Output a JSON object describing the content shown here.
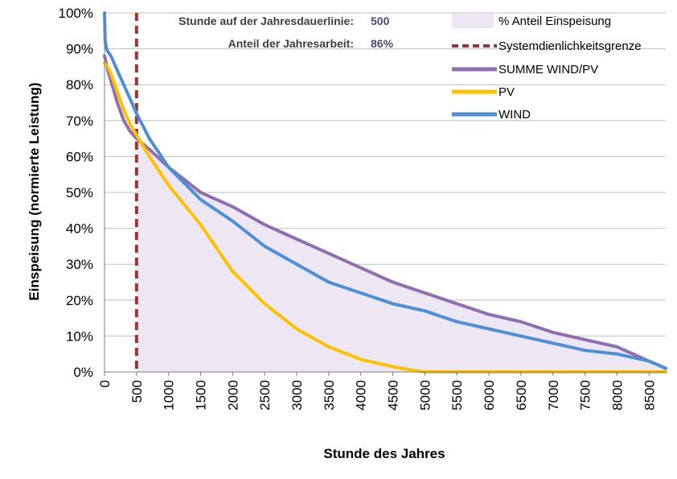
{
  "chart_data": {
    "type": "area",
    "title": "",
    "xlabel": "Stunde des Jahres",
    "ylabel": "Einspeisung (normierte Leistung)",
    "xlim": [
      0,
      8760
    ],
    "ylim": [
      0,
      100
    ],
    "x_ticks": [
      "0",
      "500",
      "1000",
      "1500",
      "2000",
      "2500",
      "3000",
      "3500",
      "4000",
      "4500",
      "5000",
      "5500",
      "6000",
      "6500",
      "7000",
      "7500",
      "8000",
      "8500"
    ],
    "y_ticks": [
      "0%",
      "10%",
      "20%",
      "30%",
      "40%",
      "50%",
      "60%",
      "70%",
      "80%",
      "90%",
      "100%"
    ],
    "grid": "horizontal",
    "legend_position": "top-right",
    "info": {
      "hour_label": "Stunde auf der Jahresdauerlinie:",
      "hour_value": "500",
      "share_label": "Anteil der Jahresarbeit:",
      "share_value": "86%"
    },
    "threshold": {
      "name": "Systemdienlichkeitsgrenze",
      "x": 500,
      "color": "#953735"
    },
    "area": {
      "name": "% Anteil Einspeisung",
      "color": "#ece7f2",
      "from_x": 500,
      "series": "SUMME WIND/PV"
    },
    "series": [
      {
        "name": "SUMME WIND/PV",
        "color": "#8f6fb0",
        "x": [
          0,
          50,
          100,
          200,
          300,
          400,
          500,
          700,
          1000,
          1500,
          2000,
          2500,
          3000,
          3500,
          4000,
          4500,
          5000,
          5500,
          6000,
          6500,
          7000,
          7500,
          8000,
          8500,
          8760
        ],
        "values": [
          88,
          84,
          81,
          75,
          70,
          67,
          65,
          62,
          57,
          50,
          46,
          41,
          37,
          33,
          29,
          25,
          22,
          19,
          16,
          14,
          11,
          9,
          7,
          3,
          1
        ]
      },
      {
        "name": "PV",
        "color": "#ffc000",
        "x": [
          0,
          50,
          100,
          200,
          300,
          400,
          500,
          700,
          1000,
          1500,
          2000,
          2500,
          3000,
          3500,
          4000,
          4500,
          4800,
          5000,
          5500,
          6000,
          6500,
          7000,
          7500,
          8000,
          8500,
          8760
        ],
        "values": [
          86,
          85,
          83,
          78,
          73,
          69,
          66,
          60,
          52,
          41,
          28,
          19,
          12,
          7,
          3.5,
          1.5,
          0.5,
          0,
          0,
          0,
          0,
          0,
          0,
          0,
          0,
          0
        ]
      },
      {
        "name": "WIND",
        "color": "#4f8fd6",
        "x": [
          0,
          10,
          30,
          60,
          100,
          200,
          300,
          400,
          500,
          700,
          1000,
          1500,
          2000,
          2500,
          3000,
          3500,
          4000,
          4500,
          5000,
          5500,
          6000,
          6500,
          7000,
          7500,
          8000,
          8500,
          8760
        ],
        "values": [
          100,
          92,
          90,
          89,
          88,
          84,
          80,
          76,
          72,
          65,
          57,
          48,
          42,
          35,
          30,
          25,
          22,
          19,
          17,
          14,
          12,
          10,
          8,
          6,
          5,
          3,
          1
        ]
      }
    ]
  }
}
